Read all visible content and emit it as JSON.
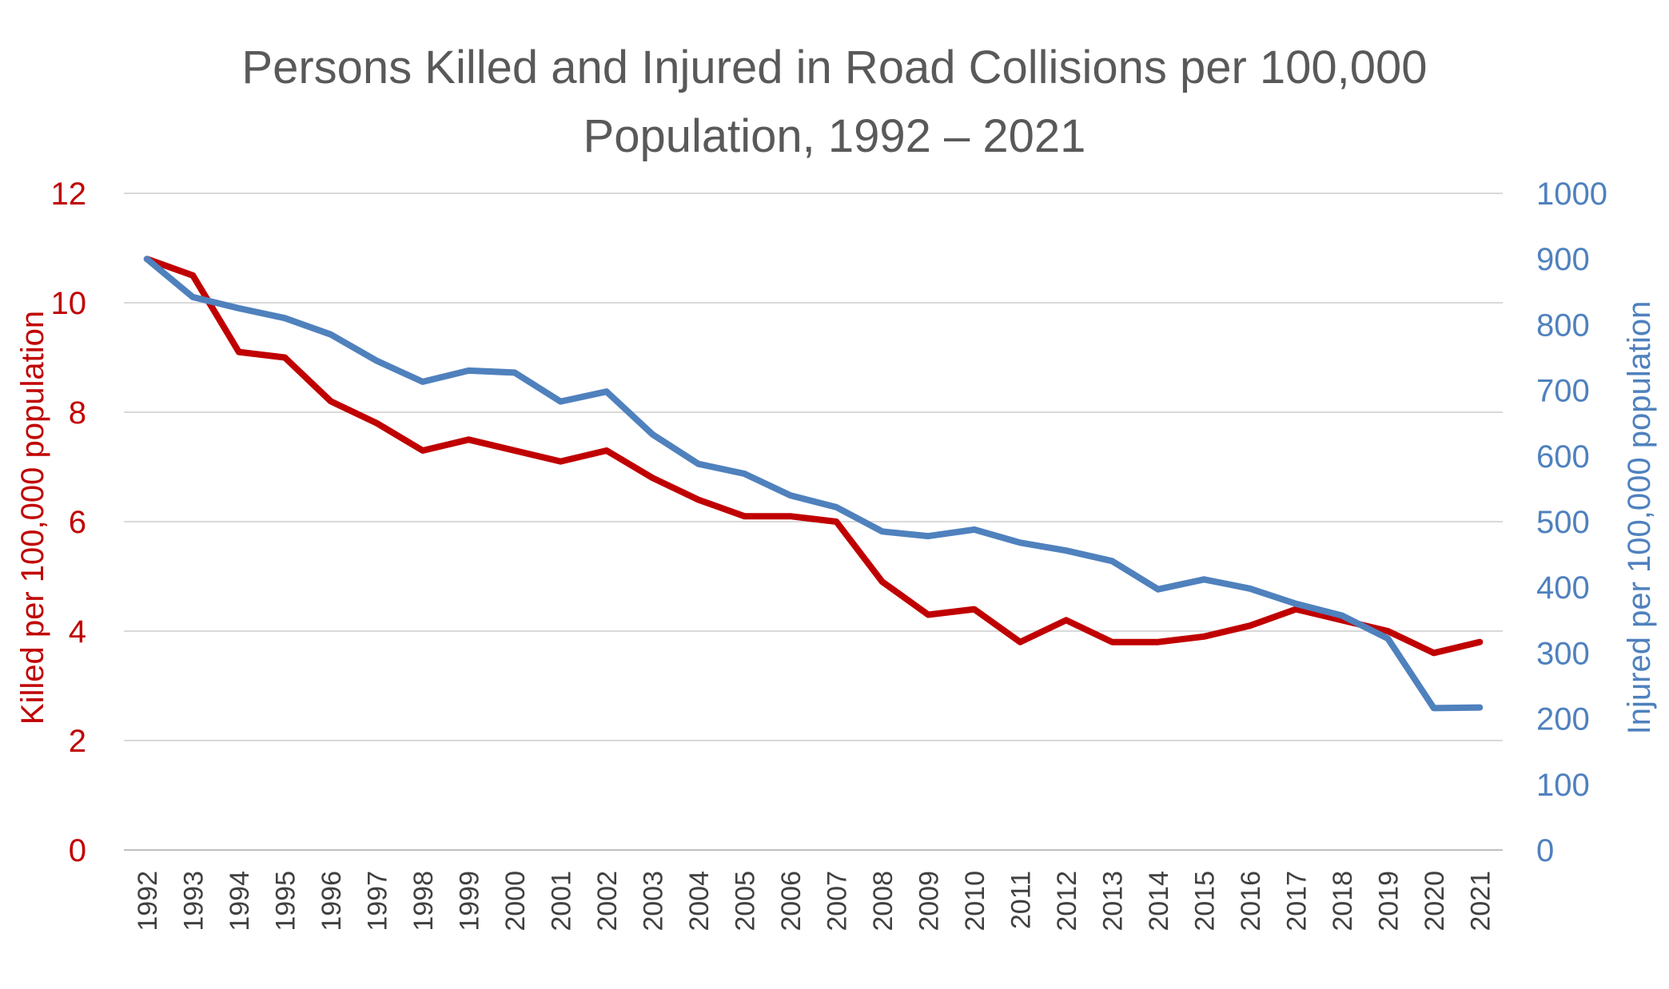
{
  "chart_data": {
    "type": "line",
    "title_lines": [
      "Persons Killed and Injured in Road Collisions per 100,000",
      "Population, 1992 – 2021"
    ],
    "ylabel_left": "Killed per 100,000 population",
    "ylabel_right": "Injured per 100,000 population",
    "ylim_left": [
      0,
      12
    ],
    "ylim_right": [
      0,
      1000
    ],
    "yticks_left": [
      "0",
      "2",
      "4",
      "6",
      "8",
      "10",
      "12"
    ],
    "yticks_right": [
      "0",
      "100",
      "200",
      "300",
      "400",
      "500",
      "600",
      "700",
      "800",
      "900",
      "1000"
    ],
    "grid": true,
    "x": [
      "1992",
      "1993",
      "1994",
      "1995",
      "1996",
      "1997",
      "1998",
      "1999",
      "2000",
      "2001",
      "2002",
      "2003",
      "2004",
      "2005",
      "2006",
      "2007",
      "2008",
      "2009",
      "2010",
      "2011",
      "2012",
      "2013",
      "2014",
      "2015",
      "2016",
      "2017",
      "2018",
      "2019",
      "2020",
      "2021"
    ],
    "series": [
      {
        "axis": "left",
        "color": "#C00000",
        "values": [
          10.8,
          10.5,
          9.1,
          9.0,
          8.2,
          7.8,
          7.3,
          7.5,
          7.3,
          7.1,
          7.3,
          6.8,
          6.4,
          6.1,
          6.1,
          6.0,
          4.9,
          4.3,
          4.4,
          3.8,
          4.2,
          3.8,
          3.8,
          3.9,
          4.1,
          4.4,
          4.2,
          4.0,
          3.6,
          3.8
        ]
      },
      {
        "axis": "right",
        "color": "#4F81BD",
        "values": [
          900,
          842,
          825,
          810,
          785,
          745,
          713,
          730,
          727,
          683,
          698,
          633,
          588,
          573,
          540,
          522,
          485,
          478,
          488,
          468,
          456,
          440,
          397,
          412,
          398,
          375,
          357,
          322,
          216,
          217
        ]
      }
    ]
  }
}
